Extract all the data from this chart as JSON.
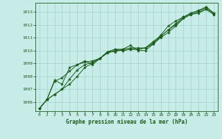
{
  "background_color": "#c8ece8",
  "grid_color": "#a8d4d0",
  "line_color": "#1a5c1a",
  "marker_color": "#1a5c1a",
  "title": "Graphe pression niveau de la mer (hPa)",
  "xlim": [
    -0.5,
    23.5
  ],
  "ylim": [
    1005.3,
    1013.7
  ],
  "yticks": [
    1006,
    1007,
    1008,
    1009,
    1010,
    1011,
    1012,
    1013
  ],
  "xticks": [
    0,
    1,
    2,
    3,
    4,
    5,
    6,
    7,
    8,
    9,
    10,
    11,
    12,
    13,
    14,
    15,
    16,
    17,
    18,
    19,
    20,
    21,
    22,
    23
  ],
  "series": [
    [
      1005.5,
      1006.2,
      1006.6,
      1007.0,
      1007.4,
      1008.0,
      1008.7,
      1009.0,
      1009.4,
      1009.8,
      1010.0,
      1010.0,
      1010.1,
      1010.1,
      1010.2,
      1010.5,
      1011.0,
      1011.4,
      1011.9,
      1012.5,
      1012.8,
      1012.9,
      1013.2,
      1012.8
    ],
    [
      1005.5,
      1006.2,
      1006.6,
      1007.0,
      1007.8,
      1008.5,
      1008.9,
      1009.1,
      1009.4,
      1009.9,
      1010.1,
      1010.1,
      1010.2,
      1010.2,
      1010.2,
      1010.7,
      1011.1,
      1011.6,
      1012.0,
      1012.5,
      1012.8,
      1013.0,
      1013.2,
      1012.8
    ],
    [
      1005.5,
      1006.2,
      1007.6,
      1007.9,
      1008.4,
      1008.9,
      1009.1,
      1009.2,
      1009.4,
      1009.9,
      1010.1,
      1010.0,
      1010.1,
      1010.1,
      1010.2,
      1010.6,
      1011.2,
      1011.9,
      1012.3,
      1012.6,
      1012.9,
      1013.1,
      1013.3,
      1012.9
    ],
    [
      1005.5,
      1006.2,
      1007.7,
      1007.4,
      1008.7,
      1008.9,
      1009.2,
      1008.9,
      1009.4,
      1009.9,
      1009.9,
      1010.1,
      1010.4,
      1010.0,
      1010.0,
      1010.5,
      1011.1,
      1011.6,
      1012.1,
      1012.6,
      1012.9,
      1013.1,
      1013.4,
      1012.9
    ]
  ]
}
